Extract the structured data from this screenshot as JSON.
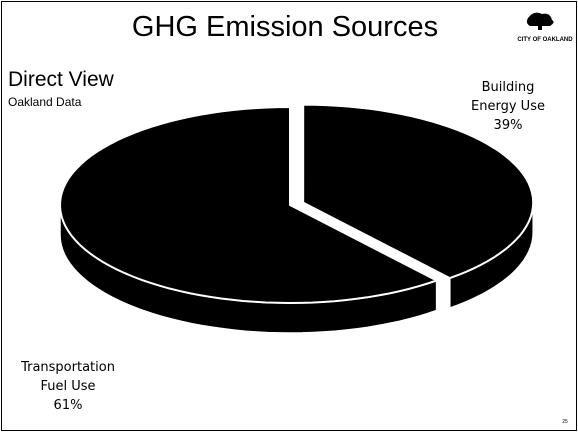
{
  "chart_data": {
    "type": "pie",
    "title": "GHG Emission Sources",
    "subtitle": "Direct View",
    "note": "Oakland Data",
    "categories": [
      "Building Energy Use",
      "Transportation Fuel Use"
    ],
    "values": [
      39,
      61
    ],
    "value_labels": [
      "39%",
      "61%"
    ],
    "colors": [
      "#000000",
      "#000000"
    ],
    "explode": [
      true,
      false
    ]
  },
  "logo": "CITY OF OAKLAND",
  "page_number": "25"
}
